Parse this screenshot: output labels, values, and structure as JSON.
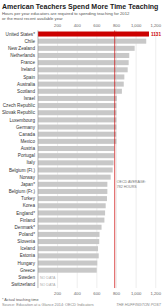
{
  "chart_data": {
    "type": "bar",
    "orientation": "horizontal",
    "title": "American Teachers Spend More Time Teaching",
    "subtitle": "Hours per year educators are required to spending teaching for 2012\nor the most recent available year",
    "categories": [
      "United States*",
      "Chile",
      "New Zealand",
      "Netherlands",
      "France",
      "Ireland",
      "Spain",
      "Australia",
      "Scotland",
      "Israel",
      "Czech Republic",
      "Slovak Republic",
      "Luxembourg",
      "Germany",
      "Canada",
      "Mexico",
      "Austria",
      "Portugal",
      "Italy",
      "Belgium (Fl.)",
      "Norway",
      "Japan*",
      "Belgium (Fr.)",
      "Turkey",
      "Korea",
      "England*",
      "Finland",
      "Denmark*",
      "Poland*",
      "Slovenia",
      "Iceland",
      "Estonia",
      "Hungary",
      "Greece",
      "Sweden",
      "Switzerland"
    ],
    "values": [
      1131,
      1103,
      985,
      930,
      924,
      914,
      880,
      874,
      855,
      805,
      800,
      800,
      800,
      800,
      798,
      800,
      779,
      778,
      770,
      761,
      741,
      707,
      707,
      703,
      690,
      684,
      677,
      648,
      627,
      624,
      612,
      619,
      604,
      599,
      null,
      null
    ],
    "value_labels": [
      "1131",
      null,
      null,
      null,
      null,
      null,
      null,
      null,
      null,
      null,
      null,
      null,
      null,
      null,
      null,
      null,
      null,
      null,
      null,
      null,
      null,
      null,
      null,
      null,
      null,
      null,
      null,
      null,
      null,
      null,
      null,
      null,
      null,
      null,
      "NO DATA",
      "NO DATA"
    ],
    "colors": [
      "#cc0000",
      "#c8c8c8",
      "#c8c8c8",
      "#c8c8c8",
      "#c8c8c8",
      "#c8c8c8",
      "#c8c8c8",
      "#c8c8c8",
      "#c8c8c8",
      "#c8c8c8",
      "#c8c8c8",
      "#c8c8c8",
      "#c8c8c8",
      "#c8c8c8",
      "#c8c8c8",
      "#c8c8c8",
      "#c8c8c8",
      "#c8c8c8",
      "#c8c8c8",
      "#c8c8c8",
      "#c8c8c8",
      "#c8c8c8",
      "#c8c8c8",
      "#c8c8c8",
      "#c8c8c8",
      "#c8c8c8",
      "#c8c8c8",
      "#c8c8c8",
      "#c8c8c8",
      "#c8c8c8",
      "#c8c8c8",
      "#c8c8c8",
      "#c8c8c8",
      "#c8c8c8",
      "#c8c8c8",
      "#c8c8c8"
    ],
    "reference_line": {
      "value": 782,
      "label": "OECD AVERAGE:\n782 HOURS",
      "color": "#cc0000"
    },
    "xlim": [
      0,
      1200
    ],
    "xticks": [
      200,
      400,
      600,
      800,
      {
        "value": 1000,
        "label": "1,000"
      },
      {
        "value": 1200,
        "label": "1,200"
      }
    ],
    "grid": true,
    "footnote": "* Actual teaching time",
    "source": "Source: Education at a Glance 2014: OECD Indicators",
    "credit": "THE HUFFINGTON POST"
  }
}
